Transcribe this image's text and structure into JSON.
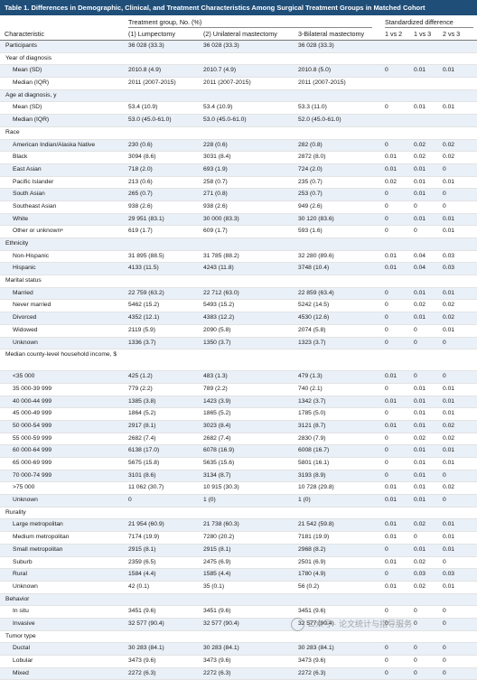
{
  "title": "Table 1. Differences in Demographic, Clinical, and Treatment Characteristics Among Surgical Treatment Groups in Matched Cohort",
  "header": {
    "characteristic": "Characteristic",
    "group_header": "Treatment group, No. (%)",
    "col1": "(1) Lumpectomy",
    "col2": "(2) Unilateral mastectomy",
    "col3": "3-Bilateral mastectomy",
    "std_header": "Standardized difference",
    "s1": "1 vs 2",
    "s2": "1 vs 3",
    "s3": "2 vs 3"
  },
  "rows": [
    {
      "type": "data",
      "ind": 0,
      "label": "Participants",
      "v": [
        "36 028 (33.3)",
        "36 028 (33.3)",
        "36 028 (33.3)",
        "",
        "",
        ""
      ]
    },
    {
      "type": "section",
      "label": "Year of diagnosis"
    },
    {
      "type": "data",
      "label": "Mean (SD)",
      "v": [
        "2010.8 (4.9)",
        "2010.7 (4.9)",
        "2010.8 (5.0)",
        "0",
        "0.01",
        "0.01"
      ]
    },
    {
      "type": "data",
      "label": "Median (IQR)",
      "v": [
        "2011 (2007-2015)",
        "2011 (2007-2015)",
        "2011 (2007-2015)",
        "",
        "",
        ""
      ]
    },
    {
      "type": "section",
      "label": "Age at diagnosis, y"
    },
    {
      "type": "data",
      "label": "Mean (SD)",
      "v": [
        "53.4 (10.9)",
        "53.4 (10.9)",
        "53.3 (11.0)",
        "0",
        "0.01",
        "0.01"
      ]
    },
    {
      "type": "data",
      "label": "Median (IQR)",
      "v": [
        "53.0 (45.0-61.0)",
        "53.0 (45.0-61.0)",
        "52.0 (45.0-61.0)",
        "",
        "",
        ""
      ]
    },
    {
      "type": "section",
      "label": "Race"
    },
    {
      "type": "data",
      "label": "American Indian/Alaska Native",
      "v": [
        "230 (0.6)",
        "228 (0.6)",
        "282 (0.8)",
        "0",
        "0.02",
        "0.02"
      ]
    },
    {
      "type": "data",
      "label": "Black",
      "v": [
        "3094 (8.6)",
        "3031 (8.4)",
        "2872 (8.0)",
        "0.01",
        "0.02",
        "0.02"
      ]
    },
    {
      "type": "data",
      "label": "East Asian",
      "v": [
        "718 (2.0)",
        "693 (1.9)",
        "724 (2.0)",
        "0.01",
        "0.01",
        "0"
      ]
    },
    {
      "type": "data",
      "label": "Pacific Islander",
      "v": [
        "213 (0.6)",
        "258 (0.7)",
        "235 (0.7)",
        "0.02",
        "0.01",
        "0.01"
      ]
    },
    {
      "type": "data",
      "label": "South Asian",
      "v": [
        "265 (0.7)",
        "271 (0.8)",
        "253 (0.7)",
        "0",
        "0.01",
        "0"
      ]
    },
    {
      "type": "data",
      "label": "Southeast Asian",
      "v": [
        "938 (2.6)",
        "938 (2.6)",
        "949 (2.6)",
        "0",
        "0",
        "0"
      ]
    },
    {
      "type": "data",
      "label": "White",
      "v": [
        "29 951 (83.1)",
        "30 000 (83.3)",
        "30 120 (83.6)",
        "0",
        "0.01",
        "0.01"
      ]
    },
    {
      "type": "data",
      "label": "Other or unknownᵃ",
      "v": [
        "619 (1.7)",
        "609 (1.7)",
        "593 (1.6)",
        "0",
        "0",
        "0.01"
      ]
    },
    {
      "type": "section",
      "label": "Ethnicity"
    },
    {
      "type": "data",
      "label": "Non-Hispanic",
      "v": [
        "31 895 (88.5)",
        "31 785 (88.2)",
        "32 280 (89.6)",
        "0.01",
        "0.04",
        "0.03"
      ]
    },
    {
      "type": "data",
      "label": "Hispanic",
      "v": [
        "4133 (11.5)",
        "4243 (11.8)",
        "3748 (10.4)",
        "0.01",
        "0.04",
        "0.03"
      ]
    },
    {
      "type": "section",
      "label": "Marital status"
    },
    {
      "type": "data",
      "label": "Married",
      "v": [
        "22 759 (63.2)",
        "22 712 (63.0)",
        "22 859 (63.4)",
        "0",
        "0.01",
        "0.01"
      ]
    },
    {
      "type": "data",
      "label": "Never married",
      "v": [
        "5462 (15.2)",
        "5493 (15.2)",
        "5242 (14.5)",
        "0",
        "0.02",
        "0.02"
      ]
    },
    {
      "type": "data",
      "label": "Divorced",
      "v": [
        "4352 (12.1)",
        "4383 (12.2)",
        "4530 (12.6)",
        "0",
        "0.01",
        "0.02"
      ]
    },
    {
      "type": "data",
      "label": "Widowed",
      "v": [
        "2119 (5.9)",
        "2090 (5.8)",
        "2074 (5.8)",
        "0",
        "0",
        "0.01"
      ]
    },
    {
      "type": "data",
      "label": "Unknown",
      "v": [
        "1336 (3.7)",
        "1350 (3.7)",
        "1323 (3.7)",
        "0",
        "0",
        "0"
      ]
    },
    {
      "type": "section",
      "tall": true,
      "label": "Median county-level household income, $"
    },
    {
      "type": "data",
      "label": "<35 000",
      "v": [
        "425 (1.2)",
        "483 (1.3)",
        "479 (1.3)",
        "0.01",
        "0",
        "0"
      ]
    },
    {
      "type": "data",
      "label": "35 000-39 999",
      "v": [
        "779 (2.2)",
        "789 (2.2)",
        "740 (2.1)",
        "0",
        "0.01",
        "0.01"
      ]
    },
    {
      "type": "data",
      "label": "40 000-44 999",
      "v": [
        "1385 (3.8)",
        "1423 (3.9)",
        "1342 (3.7)",
        "0.01",
        "0.01",
        "0.01"
      ]
    },
    {
      "type": "data",
      "label": "45 000-49 999",
      "v": [
        "1864 (5.2)",
        "1865 (5.2)",
        "1785 (5.0)",
        "0",
        "0.01",
        "0.01"
      ]
    },
    {
      "type": "data",
      "label": "50 000-54 999",
      "v": [
        "2917 (8.1)",
        "3023 (8.4)",
        "3121 (8.7)",
        "0.01",
        "0.01",
        "0.02"
      ]
    },
    {
      "type": "data",
      "label": "55 000-59 999",
      "v": [
        "2682 (7.4)",
        "2682 (7.4)",
        "2830 (7.9)",
        "0",
        "0.02",
        "0.02"
      ]
    },
    {
      "type": "data",
      "label": "60 000-64 999",
      "v": [
        "6138 (17.0)",
        "6078 (16.9)",
        "6008 (16.7)",
        "0",
        "0.01",
        "0.01"
      ]
    },
    {
      "type": "data",
      "label": "65 000-69 999",
      "v": [
        "5675 (15.8)",
        "5635 (15.6)",
        "5801 (16.1)",
        "0",
        "0.01",
        "0.01"
      ]
    },
    {
      "type": "data",
      "label": "70 000-74 999",
      "v": [
        "3101 (8.6)",
        "3134 (8.7)",
        "3193 (8.9)",
        "0",
        "0.01",
        "0"
      ]
    },
    {
      "type": "data",
      "label": ">75 000",
      "v": [
        "11 062 (30.7)",
        "10 915 (30.3)",
        "10 728 (29.8)",
        "0.01",
        "0.01",
        "0.02"
      ]
    },
    {
      "type": "data",
      "label": "Unknown",
      "v": [
        "0",
        "1 (0)",
        "1 (0)",
        "0.01",
        "0.01",
        "0"
      ]
    },
    {
      "type": "section",
      "label": "Rurality"
    },
    {
      "type": "data",
      "label": "Large metropolitan",
      "v": [
        "21 954 (60.9)",
        "21 738 (60.3)",
        "21 542 (59.8)",
        "0.01",
        "0.02",
        "0.01"
      ]
    },
    {
      "type": "data",
      "label": "Medium metropolitan",
      "v": [
        "7174 (19.9)",
        "7280 (20.2)",
        "7181 (19.9)",
        "0.01",
        "0",
        "0.01"
      ]
    },
    {
      "type": "data",
      "label": "Small metropolitan",
      "v": [
        "2915 (8.1)",
        "2915 (8.1)",
        "2968 (8.2)",
        "0",
        "0.01",
        "0.01"
      ]
    },
    {
      "type": "data",
      "label": "Suburb",
      "v": [
        "2359 (6.5)",
        "2475 (6.9)",
        "2501 (6.9)",
        "0.01",
        "0.02",
        "0"
      ]
    },
    {
      "type": "data",
      "label": "Rural",
      "v": [
        "1584 (4.4)",
        "1585 (4.4)",
        "1780 (4.9)",
        "0",
        "0.03",
        "0.03"
      ]
    },
    {
      "type": "data",
      "label": "Unknown",
      "v": [
        "42 (0.1)",
        "35 (0.1)",
        "56 (0.2)",
        "0.01",
        "0.02",
        "0.01"
      ]
    },
    {
      "type": "section",
      "label": "Behavior"
    },
    {
      "type": "data",
      "label": "In situ",
      "v": [
        "3451 (9.6)",
        "3451 (9.6)",
        "3451 (9.6)",
        "0",
        "0",
        "0"
      ]
    },
    {
      "type": "data",
      "label": "Invasive",
      "v": [
        "32 577 (90.4)",
        "32 577 (90.4)",
        "32 577 (90.4)",
        "0",
        "0",
        "0"
      ]
    },
    {
      "type": "section",
      "label": "Tumor type"
    },
    {
      "type": "data",
      "label": "Ductal",
      "v": [
        "30 283 (84.1)",
        "30 283 (84.1)",
        "30 283 (84.1)",
        "0",
        "0",
        "0"
      ]
    },
    {
      "type": "data",
      "label": "Lobular",
      "v": [
        "3473 (9.6)",
        "3473 (9.6)",
        "3473 (9.6)",
        "0",
        "0",
        "0"
      ]
    },
    {
      "type": "data",
      "label": "Mixed",
      "v": [
        "2272 (6.3)",
        "2272 (6.3)",
        "2272 (6.3)",
        "0",
        "0",
        "0"
      ]
    }
  ],
  "watermark": {
    "text": "公众号 · 论文统计与指导服务",
    "icon": "wechat-icon"
  }
}
